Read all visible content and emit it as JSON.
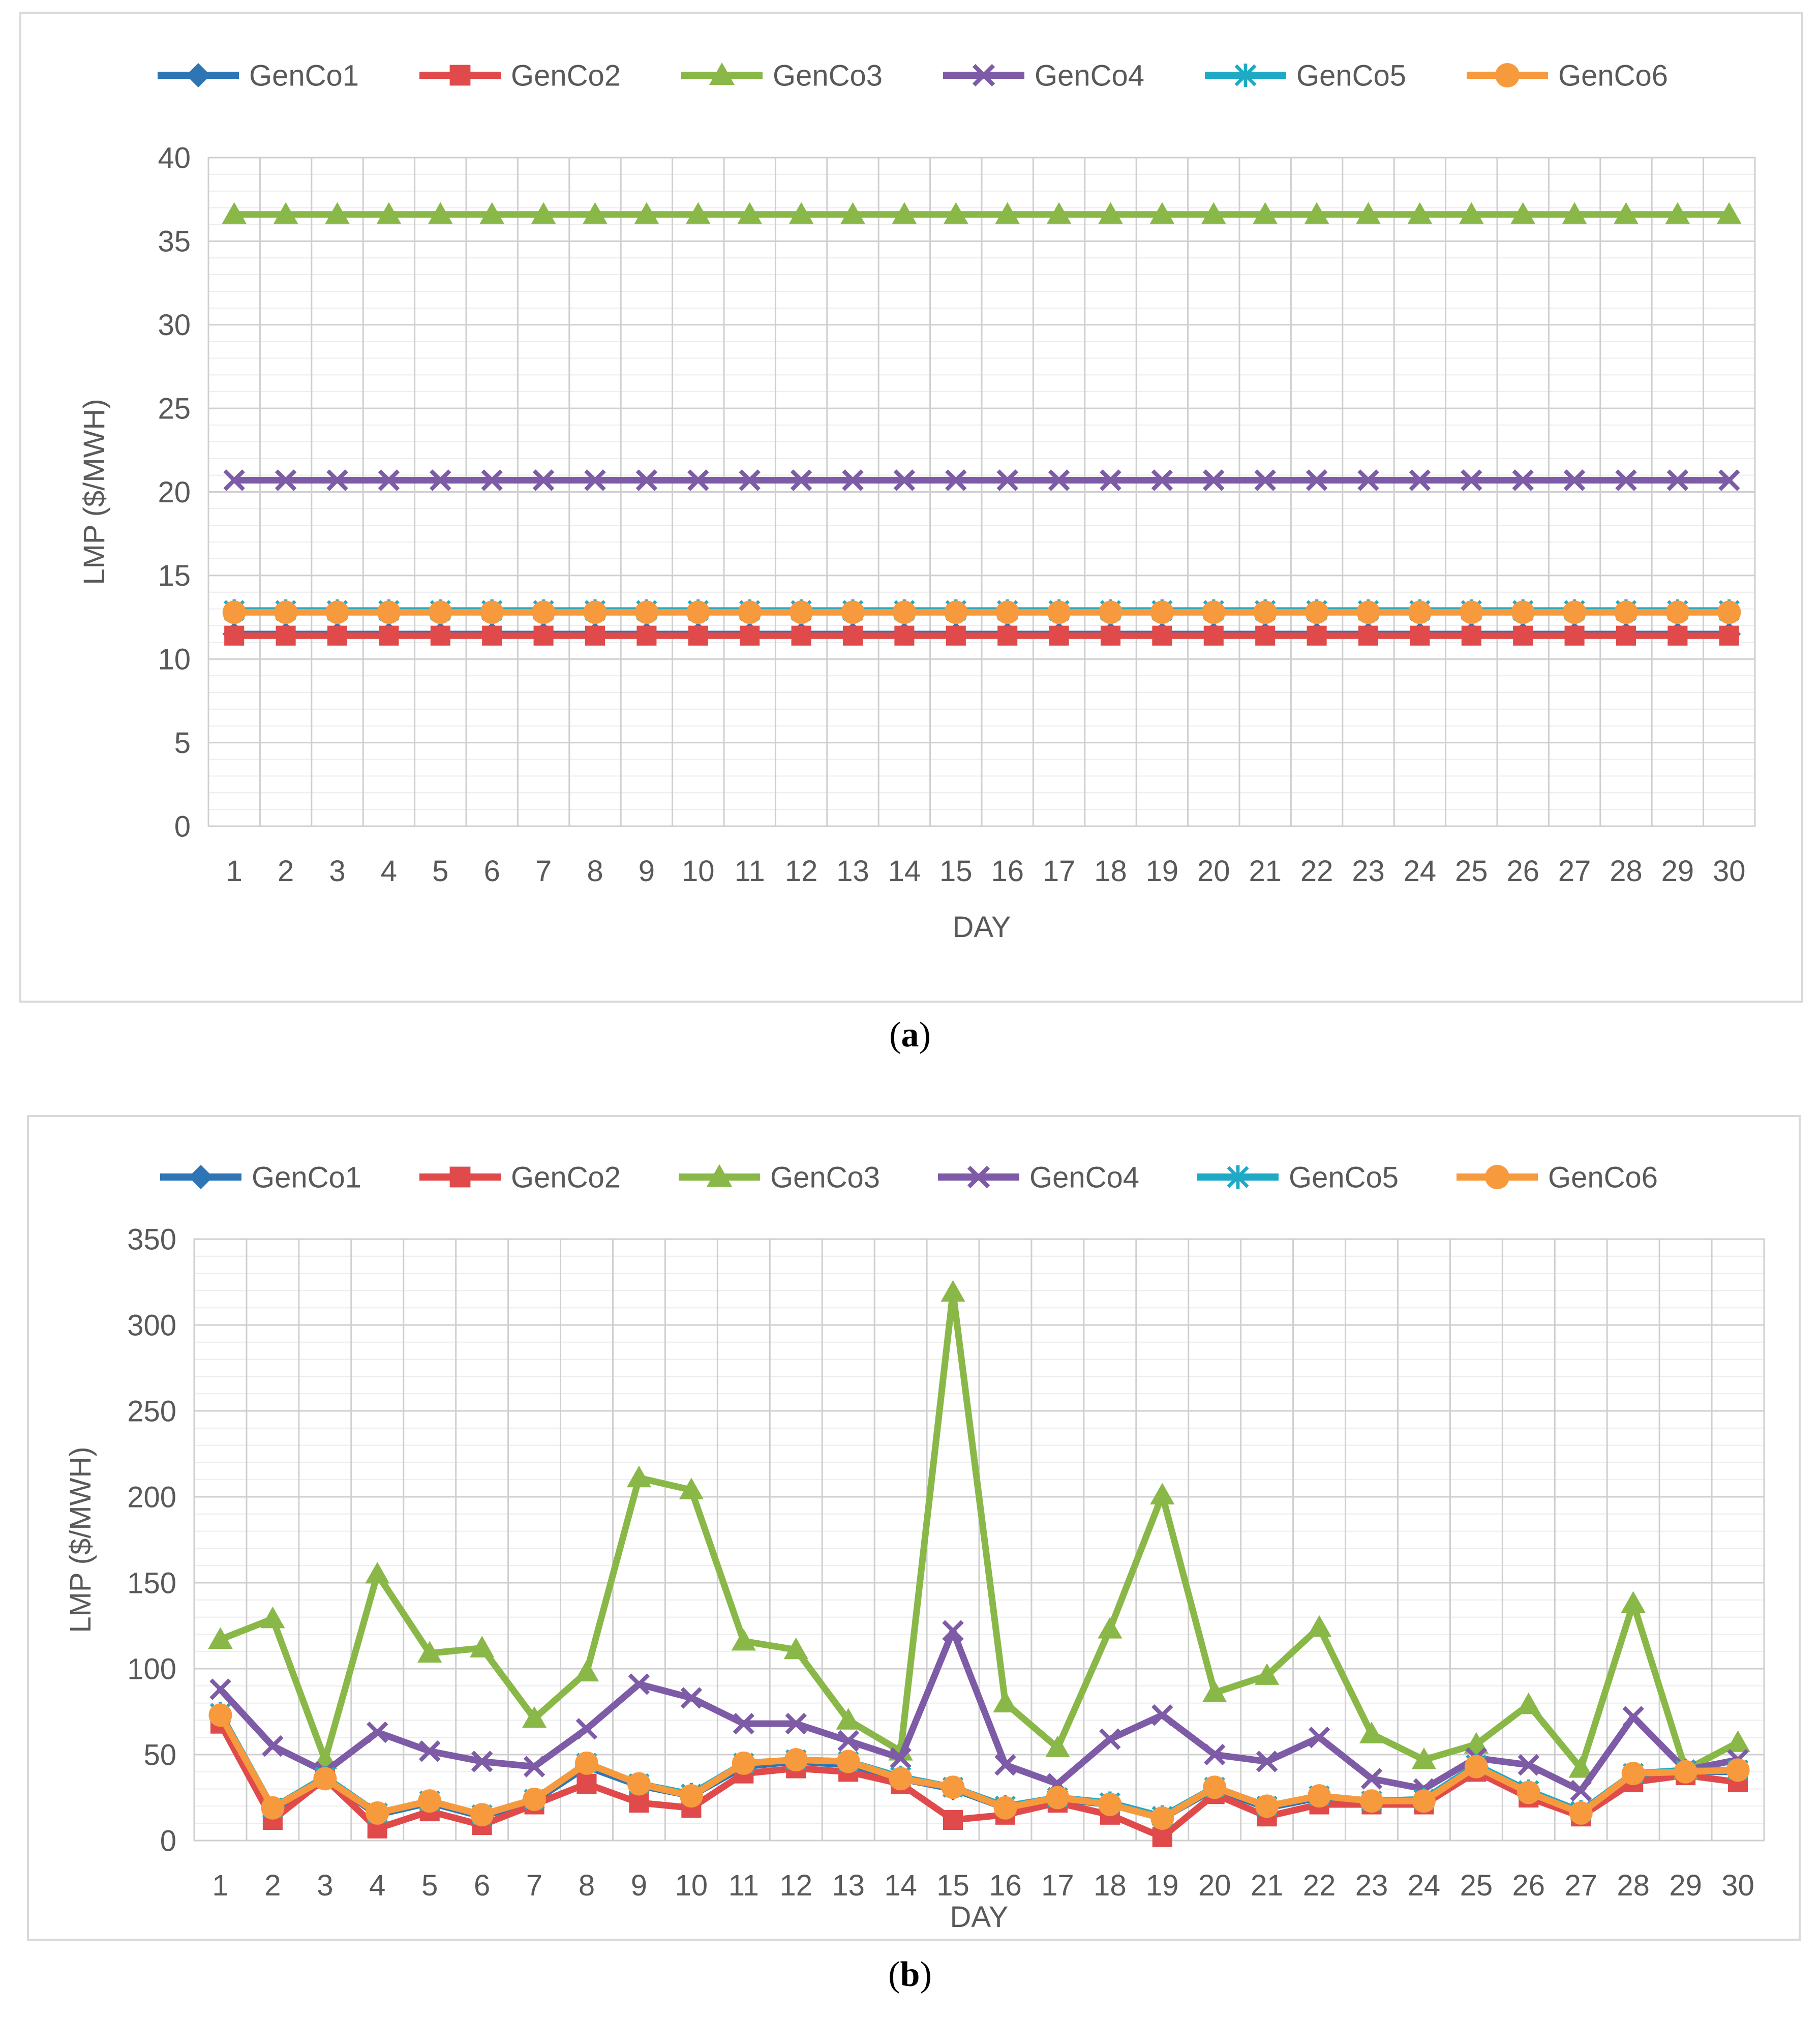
{
  "chart_data": [
    {
      "panel_label": "a",
      "type": "line",
      "xlabel": "DAY",
      "ylabel": "LMP ($/MWH)",
      "x": [
        1,
        2,
        3,
        4,
        5,
        6,
        7,
        8,
        9,
        10,
        11,
        12,
        13,
        14,
        15,
        16,
        17,
        18,
        19,
        20,
        21,
        22,
        23,
        24,
        25,
        26,
        27,
        28,
        29,
        30
      ],
      "ylim": [
        0,
        40
      ],
      "yticks": [
        0,
        5,
        10,
        15,
        20,
        25,
        30,
        35,
        40
      ],
      "grid": true,
      "legend_position": "top",
      "series": [
        {
          "name": "GenCo1",
          "color": "#2E75B6",
          "marker": "diamond",
          "values": [
            11.5,
            11.5,
            11.5,
            11.5,
            11.5,
            11.5,
            11.5,
            11.5,
            11.5,
            11.5,
            11.5,
            11.5,
            11.5,
            11.5,
            11.5,
            11.5,
            11.5,
            11.5,
            11.5,
            11.5,
            11.5,
            11.5,
            11.5,
            11.5,
            11.5,
            11.5,
            11.5,
            11.5,
            11.5,
            11.5
          ]
        },
        {
          "name": "GenCo2",
          "color": "#E04A4A",
          "marker": "square",
          "values": [
            11.4,
            11.4,
            11.4,
            11.4,
            11.4,
            11.4,
            11.4,
            11.4,
            11.4,
            11.4,
            11.4,
            11.4,
            11.4,
            11.4,
            11.4,
            11.4,
            11.4,
            11.4,
            11.4,
            11.4,
            11.4,
            11.4,
            11.4,
            11.4,
            11.4,
            11.4,
            11.4,
            11.4,
            11.4,
            11.4
          ]
        },
        {
          "name": "GenCo3",
          "color": "#8AB848",
          "marker": "triangle",
          "values": [
            36.6,
            36.6,
            36.6,
            36.6,
            36.6,
            36.6,
            36.6,
            36.6,
            36.6,
            36.6,
            36.6,
            36.6,
            36.6,
            36.6,
            36.6,
            36.6,
            36.6,
            36.6,
            36.6,
            36.6,
            36.6,
            36.6,
            36.6,
            36.6,
            36.6,
            36.6,
            36.6,
            36.6,
            36.6,
            36.6
          ]
        },
        {
          "name": "GenCo4",
          "color": "#7D5BA6",
          "marker": "x",
          "values": [
            20.7,
            20.7,
            20.7,
            20.7,
            20.7,
            20.7,
            20.7,
            20.7,
            20.7,
            20.7,
            20.7,
            20.7,
            20.7,
            20.7,
            20.7,
            20.7,
            20.7,
            20.7,
            20.7,
            20.7,
            20.7,
            20.7,
            20.7,
            20.7,
            20.7,
            20.7,
            20.7,
            20.7,
            20.7,
            20.7
          ]
        },
        {
          "name": "GenCo5",
          "color": "#1EAAC4",
          "marker": "asterisk",
          "values": [
            12.9,
            12.9,
            12.9,
            12.9,
            12.9,
            12.9,
            12.9,
            12.9,
            12.9,
            12.9,
            12.9,
            12.9,
            12.9,
            12.9,
            12.9,
            12.9,
            12.9,
            12.9,
            12.9,
            12.9,
            12.9,
            12.9,
            12.9,
            12.9,
            12.9,
            12.9,
            12.9,
            12.9,
            12.9,
            12.9
          ]
        },
        {
          "name": "GenCo6",
          "color": "#F79A3E",
          "marker": "circle",
          "values": [
            12.8,
            12.8,
            12.8,
            12.8,
            12.8,
            12.8,
            12.8,
            12.8,
            12.8,
            12.8,
            12.8,
            12.8,
            12.8,
            12.8,
            12.8,
            12.8,
            12.8,
            12.8,
            12.8,
            12.8,
            12.8,
            12.8,
            12.8,
            12.8,
            12.8,
            12.8,
            12.8,
            12.8,
            12.8,
            12.8
          ]
        }
      ]
    },
    {
      "panel_label": "b",
      "type": "line",
      "xlabel": "DAY",
      "ylabel": "LMP ($/MWH)",
      "x": [
        1,
        2,
        3,
        4,
        5,
        6,
        7,
        8,
        9,
        10,
        11,
        12,
        13,
        14,
        15,
        16,
        17,
        18,
        19,
        20,
        21,
        22,
        23,
        24,
        25,
        26,
        27,
        28,
        29,
        30
      ],
      "ylim": [
        0,
        350
      ],
      "yticks": [
        0,
        50,
        100,
        150,
        200,
        250,
        300,
        350
      ],
      "grid": true,
      "legend_position": "top",
      "series": [
        {
          "name": "GenCo1",
          "color": "#2E75B6",
          "marker": "diamond",
          "values": [
            72,
            18,
            36,
            15,
            22,
            14,
            23,
            43,
            32,
            26,
            43,
            46,
            44,
            36,
            30,
            19,
            24,
            21,
            13,
            30,
            19,
            25,
            22,
            23,
            43,
            28,
            16,
            38,
            40,
            40
          ]
        },
        {
          "name": "GenCo2",
          "color": "#E04A4A",
          "marker": "square",
          "values": [
            68,
            12,
            36,
            7,
            17,
            9,
            21,
            33,
            22,
            19,
            39,
            42,
            40,
            33,
            12,
            15,
            22,
            15,
            2,
            27,
            14,
            21,
            21,
            21,
            40,
            25,
            14,
            34,
            38,
            34
          ]
        },
        {
          "name": "GenCo3",
          "color": "#8AB848",
          "marker": "triangle",
          "values": [
            117,
            129,
            47,
            155,
            109,
            112,
            71,
            98,
            211,
            204,
            116,
            111,
            70,
            52,
            319,
            80,
            54,
            123,
            201,
            86,
            96,
            124,
            62,
            47,
            56,
            79,
            42,
            138,
            41,
            57
          ]
        },
        {
          "name": "GenCo4",
          "color": "#7D5BA6",
          "marker": "x",
          "values": [
            88,
            55,
            40,
            63,
            52,
            46,
            43,
            65,
            91,
            83,
            68,
            68,
            58,
            48,
            122,
            44,
            33,
            59,
            73,
            50,
            46,
            60,
            36,
            30,
            48,
            44,
            29,
            72,
            41,
            47
          ]
        },
        {
          "name": "GenCo5",
          "color": "#1EAAC4",
          "marker": "asterisk",
          "values": [
            74,
            19,
            37,
            16,
            23,
            15,
            24,
            45,
            33,
            27,
            45,
            47,
            46,
            37,
            31,
            20,
            25,
            22,
            14,
            31,
            20,
            26,
            23,
            24,
            44,
            29,
            17,
            39,
            41,
            41
          ]
        },
        {
          "name": "GenCo6",
          "color": "#F79A3E",
          "marker": "circle",
          "values": [
            73,
            19,
            36,
            16,
            23,
            15,
            24,
            45,
            33,
            26,
            45,
            47,
            46,
            36,
            31,
            19,
            25,
            21,
            13,
            31,
            20,
            26,
            23,
            23,
            43,
            28,
            16,
            39,
            40,
            41
          ]
        }
      ]
    }
  ]
}
